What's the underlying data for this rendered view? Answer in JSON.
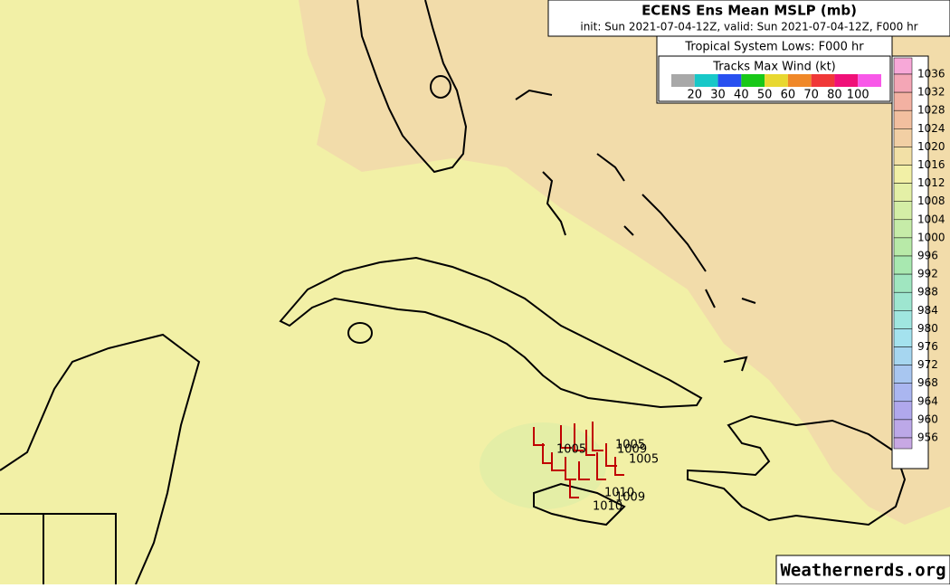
{
  "header": {
    "title": "ECENS Ens Mean MSLP (mb)",
    "subtitle": "init: Sun 2021-07-04-12Z, valid: Sun 2021-07-04-12Z, F000 hr"
  },
  "legend": {
    "title": "Tropical System Lows: F000 hr",
    "wind_title": "Tracks Max Wind (kt)",
    "wind_labels": [
      "20",
      "30",
      "40",
      "50",
      "60",
      "70",
      "80",
      "100"
    ],
    "wind_colors": [
      "#a8a8a8",
      "#18c8c8",
      "#2850f0",
      "#18c818",
      "#e8d830",
      "#f08828",
      "#f03838",
      "#f01078",
      "#f858e8"
    ]
  },
  "colorbar": {
    "levels": [
      "1036",
      "1032",
      "1028",
      "1024",
      "1020",
      "1016",
      "1012",
      "1008",
      "1004",
      "1000",
      "996",
      "992",
      "988",
      "984",
      "980",
      "976",
      "972",
      "968",
      "964",
      "960",
      "956"
    ],
    "colors": [
      "#f7a8d8",
      "#f4a6b6",
      "#f3b1a2",
      "#f2bf9f",
      "#f2cfa4",
      "#f2e0a6",
      "#f2f0a6",
      "#e4f0a6",
      "#d4eea6",
      "#c6eca8",
      "#b8eaa8",
      "#a8e8b0",
      "#a0e6c0",
      "#9ee6d0",
      "#a0e6e0",
      "#a4e2ee",
      "#a6d6f0",
      "#a8c6f0",
      "#aab6f0",
      "#b0a8ec",
      "#bca8e8",
      "#c8a8e4"
    ]
  },
  "lows": [
    "1005",
    "1009",
    "1005",
    "1005",
    "1010",
    "1009",
    "1010"
  ],
  "watermark": "Weathernerds.org"
}
